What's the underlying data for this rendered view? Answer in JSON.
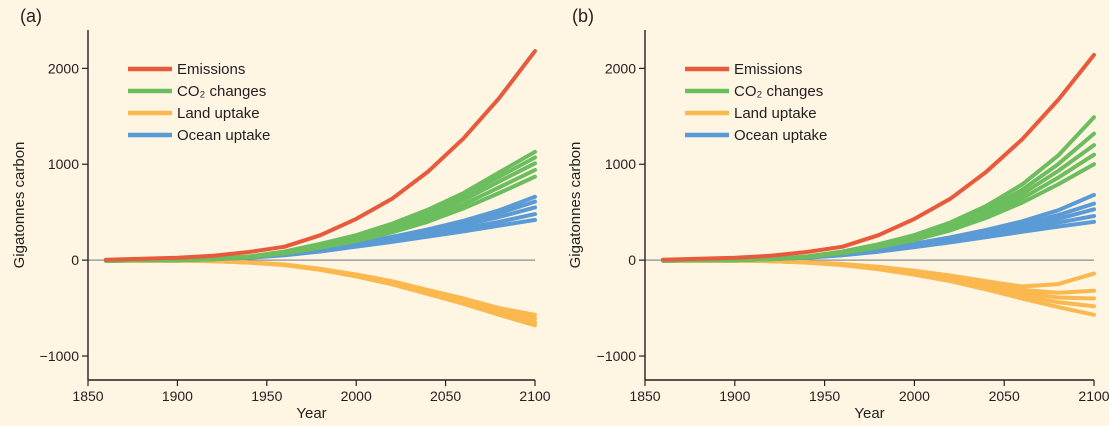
{
  "chart_data": [
    {
      "type": "line",
      "panel_label": "(a)",
      "xlabel": "Year",
      "ylabel": "Gigatonnes carbon",
      "xlim": [
        1850,
        2100
      ],
      "ylim": [
        -1250,
        2400
      ],
      "xticks": [
        1850,
        1900,
        1950,
        2000,
        2050,
        2100
      ],
      "yticks": [
        -1000,
        0,
        1000,
        2000
      ],
      "zero_line": true,
      "legend": {
        "placement": "top-left"
      },
      "series": [
        {
          "name": "Emissions",
          "color": "#e85a3c",
          "x": [
            1860,
            1880,
            1900,
            1920,
            1940,
            1960,
            1980,
            2000,
            2020,
            2040,
            2060,
            2080,
            2100
          ],
          "runs": [
            [
              5,
              15,
              25,
              45,
              85,
              140,
              260,
              430,
              640,
              920,
              1270,
              1690,
              2180
            ]
          ]
        },
        {
          "name": "CO₂ changes",
          "color": "#6cbd5e",
          "x": [
            1860,
            1880,
            1900,
            1920,
            1940,
            1960,
            1980,
            2000,
            2020,
            2040,
            2060,
            2080,
            2100
          ],
          "runs": [
            [
              -5,
              -3,
              0,
              10,
              30,
              70,
              130,
              200,
              290,
              400,
              540,
              700,
              870
            ],
            [
              -5,
              -3,
              0,
              11,
              32,
              75,
              140,
              215,
              315,
              435,
              580,
              760,
              940
            ],
            [
              -5,
              -3,
              0,
              12,
              34,
              80,
              150,
              230,
              340,
              470,
              625,
              820,
              1010
            ],
            [
              -5,
              -3,
              0,
              13,
              36,
              85,
              160,
              245,
              360,
              500,
              665,
              870,
              1070
            ],
            [
              -5,
              -3,
              0,
              14,
              38,
              90,
              170,
              260,
              380,
              525,
              700,
              915,
              1130
            ]
          ]
        },
        {
          "name": "Land uptake",
          "color": "#fbb84e",
          "x": [
            1860,
            1880,
            1900,
            1920,
            1940,
            1960,
            1980,
            2000,
            2020,
            2040,
            2060,
            2080,
            2100
          ],
          "runs": [
            [
              -5,
              -5,
              -5,
              -10,
              -25,
              -45,
              -90,
              -150,
              -220,
              -310,
              -400,
              -500,
              -570
            ],
            [
              -5,
              -5,
              -5,
              -10,
              -25,
              -47,
              -94,
              -157,
              -232,
              -325,
              -420,
              -525,
              -610
            ],
            [
              -5,
              -5,
              -5,
              -10,
              -25,
              -50,
              -98,
              -163,
              -242,
              -340,
              -440,
              -550,
              -650
            ],
            [
              -5,
              -5,
              -5,
              -10,
              -25,
              -52,
              -102,
              -170,
              -252,
              -352,
              -455,
              -570,
              -680
            ]
          ]
        },
        {
          "name": "Ocean uptake",
          "color": "#5b9bd5",
          "x": [
            1860,
            1880,
            1900,
            1920,
            1940,
            1960,
            1980,
            2000,
            2020,
            2040,
            2060,
            2080,
            2100
          ],
          "runs": [
            [
              -5,
              -3,
              0,
              10,
              25,
              50,
              90,
              140,
              190,
              245,
              300,
              360,
              420
            ],
            [
              -5,
              -3,
              0,
              11,
              27,
              55,
              97,
              150,
              205,
              265,
              330,
              400,
              480
            ],
            [
              -5,
              -3,
              0,
              12,
              29,
              60,
              105,
              160,
              220,
              290,
              365,
              450,
              550
            ],
            [
              -5,
              -3,
              0,
              13,
              31,
              63,
              110,
              168,
              232,
              305,
              390,
              490,
              610
            ],
            [
              -5,
              -3,
              0,
              14,
              33,
              66,
              115,
              175,
              243,
              320,
              410,
              520,
              660
            ]
          ]
        }
      ]
    },
    {
      "type": "line",
      "panel_label": "(b)",
      "xlabel": "Year",
      "ylabel": "Gigatonnes carbon",
      "xlim": [
        1850,
        2100
      ],
      "ylim": [
        -1250,
        2400
      ],
      "xticks": [
        1850,
        1900,
        1950,
        2000,
        2050,
        2100
      ],
      "yticks": [
        -1000,
        0,
        1000,
        2000
      ],
      "zero_line": true,
      "legend": {
        "placement": "top-left"
      },
      "series": [
        {
          "name": "Emissions",
          "color": "#e85a3c",
          "x": [
            1860,
            1880,
            1900,
            1920,
            1940,
            1960,
            1980,
            2000,
            2020,
            2040,
            2060,
            2080,
            2100
          ],
          "runs": [
            [
              5,
              15,
              25,
              45,
              85,
              140,
              260,
              430,
              640,
              920,
              1260,
              1670,
              2140
            ]
          ]
        },
        {
          "name": "CO₂ changes",
          "color": "#6cbd5e",
          "x": [
            1860,
            1880,
            1900,
            1920,
            1940,
            1960,
            1980,
            2000,
            2020,
            2040,
            2060,
            2080,
            2100
          ],
          "runs": [
            [
              -5,
              -3,
              0,
              10,
              30,
              72,
              135,
              210,
              310,
              440,
              600,
              790,
              1000
            ],
            [
              -5,
              -3,
              0,
              11,
              32,
              76,
              142,
              222,
              330,
              470,
              645,
              860,
              1100
            ],
            [
              -5,
              -3,
              0,
              12,
              34,
              80,
              150,
              235,
              350,
              500,
              690,
              930,
              1200
            ],
            [
              -5,
              -3,
              0,
              13,
              36,
              85,
              158,
              248,
              370,
              530,
              735,
              1000,
              1320
            ],
            [
              -5,
              -3,
              0,
              14,
              38,
              90,
              166,
              262,
              392,
              565,
              790,
              1090,
              1490
            ]
          ]
        },
        {
          "name": "Land uptake",
          "color": "#fbb84e",
          "x": [
            1860,
            1880,
            1900,
            1920,
            1940,
            1960,
            1980,
            2000,
            2020,
            2040,
            2060,
            2080,
            2100
          ],
          "runs": [
            [
              -5,
              -5,
              -5,
              -10,
              -20,
              -40,
              -70,
              -110,
              -160,
              -220,
              -275,
              -250,
              -140
            ],
            [
              -5,
              -5,
              -5,
              -10,
              -22,
              -43,
              -78,
              -122,
              -178,
              -245,
              -310,
              -340,
              -320
            ],
            [
              -5,
              -5,
              -5,
              -10,
              -24,
              -46,
              -84,
              -132,
              -192,
              -265,
              -340,
              -390,
              -400
            ],
            [
              -5,
              -5,
              -5,
              -10,
              -25,
              -49,
              -90,
              -142,
              -206,
              -285,
              -370,
              -440,
              -480
            ],
            [
              -5,
              -5,
              -5,
              -10,
              -26,
              -52,
              -96,
              -152,
              -220,
              -305,
              -400,
              -490,
              -570
            ]
          ]
        },
        {
          "name": "Ocean uptake",
          "color": "#5b9bd5",
          "x": [
            1860,
            1880,
            1900,
            1920,
            1940,
            1960,
            1980,
            2000,
            2020,
            2040,
            2060,
            2080,
            2100
          ],
          "runs": [
            [
              -5,
              -3,
              0,
              10,
              25,
              50,
              88,
              135,
              185,
              240,
              295,
              350,
              400
            ],
            [
              -5,
              -3,
              0,
              11,
              27,
              54,
              94,
              144,
              198,
              258,
              320,
              390,
              460
            ],
            [
              -5,
              -3,
              0,
              12,
              29,
              58,
              100,
              153,
              211,
              276,
              345,
              430,
              530
            ],
            [
              -5,
              -3,
              0,
              13,
              31,
              62,
              107,
              162,
              224,
              295,
              375,
              470,
              590
            ],
            [
              -5,
              -3,
              0,
              14,
              33,
              66,
              114,
              172,
              238,
              315,
              405,
              520,
              680
            ]
          ]
        }
      ]
    }
  ]
}
